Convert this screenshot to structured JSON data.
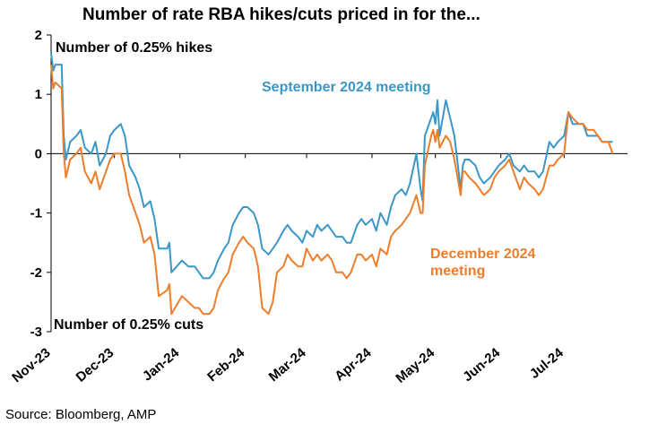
{
  "title": "Number of rate RBA hikes/cuts priced in for the...",
  "source": "Source: Bloomberg, AMP",
  "annotations": {
    "hikes": "Number of 0.25% hikes",
    "cuts": "Number of 0.25% cuts"
  },
  "colors": {
    "september": "#3a97c7",
    "december": "#ee7d2b",
    "axis": "#000000"
  },
  "chart_data": {
    "type": "line",
    "title": "Number of rate RBA hikes/cuts priced in for the...",
    "xlabel": "",
    "ylabel": "",
    "ylim": [
      -3,
      2
    ],
    "yticks": [
      2,
      1,
      0,
      -1,
      -2,
      -3
    ],
    "xlim": [
      "2023-11-01",
      "2024-07-31"
    ],
    "x_tick_labels": [
      "Nov-23",
      "Dec-23",
      "Jan-24",
      "Feb-24",
      "Mar-24",
      "Apr-24",
      "May-24",
      "Jun-24",
      "Jul-24"
    ],
    "x_tick_dates": [
      "2023-11-01",
      "2023-12-01",
      "2024-01-01",
      "2024-02-01",
      "2024-03-01",
      "2024-04-01",
      "2024-05-01",
      "2024-06-01",
      "2024-07-01"
    ],
    "grid": false,
    "series": [
      {
        "name": "September 2024 meeting",
        "color": "#3a97c7",
        "label_position": "top-right",
        "points": [
          [
            "2023-11-01",
            1.7
          ],
          [
            "2023-11-02",
            1.4
          ],
          [
            "2023-11-03",
            1.5
          ],
          [
            "2023-11-06",
            1.5
          ],
          [
            "2023-11-07",
            0.3
          ],
          [
            "2023-11-08",
            -0.1
          ],
          [
            "2023-11-10",
            0.2
          ],
          [
            "2023-11-13",
            0.3
          ],
          [
            "2023-11-15",
            0.4
          ],
          [
            "2023-11-17",
            0.1
          ],
          [
            "2023-11-20",
            0.0
          ],
          [
            "2023-11-22",
            0.2
          ],
          [
            "2023-11-24",
            -0.2
          ],
          [
            "2023-11-27",
            0.0
          ],
          [
            "2023-11-29",
            0.3
          ],
          [
            "2023-12-01",
            0.4
          ],
          [
            "2023-12-04",
            0.5
          ],
          [
            "2023-12-06",
            0.3
          ],
          [
            "2023-12-08",
            -0.2
          ],
          [
            "2023-12-11",
            -0.4
          ],
          [
            "2023-12-13",
            -0.6
          ],
          [
            "2023-12-15",
            -0.9
          ],
          [
            "2023-12-18",
            -0.8
          ],
          [
            "2023-12-20",
            -1.1
          ],
          [
            "2023-12-22",
            -1.6
          ],
          [
            "2023-12-26",
            -1.6
          ],
          [
            "2023-12-27",
            -1.5
          ],
          [
            "2023-12-28",
            -2.0
          ],
          [
            "2024-01-02",
            -1.8
          ],
          [
            "2024-01-05",
            -1.9
          ],
          [
            "2024-01-08",
            -1.9
          ],
          [
            "2024-01-10",
            -2.0
          ],
          [
            "2024-01-12",
            -2.1
          ],
          [
            "2024-01-15",
            -2.1
          ],
          [
            "2024-01-17",
            -2.0
          ],
          [
            "2024-01-19",
            -1.8
          ],
          [
            "2024-01-22",
            -1.6
          ],
          [
            "2024-01-24",
            -1.5
          ],
          [
            "2024-01-26",
            -1.2
          ],
          [
            "2024-01-29",
            -1.0
          ],
          [
            "2024-01-31",
            -0.9
          ],
          [
            "2024-02-02",
            -0.9
          ],
          [
            "2024-02-05",
            -1.0
          ],
          [
            "2024-02-07",
            -1.2
          ],
          [
            "2024-02-09",
            -1.6
          ],
          [
            "2024-02-12",
            -1.7
          ],
          [
            "2024-02-14",
            -1.6
          ],
          [
            "2024-02-16",
            -1.5
          ],
          [
            "2024-02-19",
            -1.3
          ],
          [
            "2024-02-21",
            -1.2
          ],
          [
            "2024-02-23",
            -1.3
          ],
          [
            "2024-02-26",
            -1.4
          ],
          [
            "2024-02-28",
            -1.5
          ],
          [
            "2024-03-01",
            -1.3
          ],
          [
            "2024-03-04",
            -1.4
          ],
          [
            "2024-03-06",
            -1.2
          ],
          [
            "2024-03-08",
            -1.3
          ],
          [
            "2024-03-11",
            -1.2
          ],
          [
            "2024-03-13",
            -1.3
          ],
          [
            "2024-03-15",
            -1.4
          ],
          [
            "2024-03-18",
            -1.4
          ],
          [
            "2024-03-20",
            -1.5
          ],
          [
            "2024-03-22",
            -1.5
          ],
          [
            "2024-03-25",
            -1.2
          ],
          [
            "2024-03-27",
            -1.1
          ],
          [
            "2024-03-29",
            -1.2
          ],
          [
            "2024-04-01",
            -1.1
          ],
          [
            "2024-04-03",
            -1.3
          ],
          [
            "2024-04-05",
            -1.0
          ],
          [
            "2024-04-08",
            -1.2
          ],
          [
            "2024-04-10",
            -0.9
          ],
          [
            "2024-04-12",
            -0.7
          ],
          [
            "2024-04-15",
            -0.6
          ],
          [
            "2024-04-17",
            -0.7
          ],
          [
            "2024-04-19",
            -0.5
          ],
          [
            "2024-04-22",
            0.0
          ],
          [
            "2024-04-24",
            -0.6
          ],
          [
            "2024-04-25",
            -0.8
          ],
          [
            "2024-04-26",
            0.3
          ],
          [
            "2024-04-29",
            0.6
          ],
          [
            "2024-04-30",
            0.7
          ],
          [
            "2024-05-01",
            0.5
          ],
          [
            "2024-05-02",
            0.9
          ],
          [
            "2024-05-03",
            0.3
          ],
          [
            "2024-05-06",
            0.9
          ],
          [
            "2024-05-08",
            0.6
          ],
          [
            "2024-05-10",
            0.3
          ],
          [
            "2024-05-13",
            -0.6
          ],
          [
            "2024-05-14",
            -0.2
          ],
          [
            "2024-05-15",
            -0.1
          ],
          [
            "2024-05-17",
            -0.1
          ],
          [
            "2024-05-20",
            -0.2
          ],
          [
            "2024-05-22",
            -0.4
          ],
          [
            "2024-05-24",
            -0.5
          ],
          [
            "2024-05-27",
            -0.4
          ],
          [
            "2024-05-29",
            -0.3
          ],
          [
            "2024-05-31",
            -0.2
          ],
          [
            "2024-06-03",
            -0.1
          ],
          [
            "2024-06-05",
            0.0
          ],
          [
            "2024-06-07",
            -0.2
          ],
          [
            "2024-06-10",
            -0.3
          ],
          [
            "2024-06-12",
            -0.2
          ],
          [
            "2024-06-14",
            -0.3
          ],
          [
            "2024-06-17",
            -0.3
          ],
          [
            "2024-06-19",
            -0.4
          ],
          [
            "2024-06-21",
            -0.3
          ],
          [
            "2024-06-24",
            0.2
          ],
          [
            "2024-06-26",
            0.1
          ],
          [
            "2024-06-28",
            0.2
          ],
          [
            "2024-07-01",
            0.3
          ],
          [
            "2024-07-03",
            0.7
          ],
          [
            "2024-07-05",
            0.5
          ],
          [
            "2024-07-08",
            0.5
          ],
          [
            "2024-07-10",
            0.5
          ],
          [
            "2024-07-12",
            0.3
          ],
          [
            "2024-07-15",
            0.3
          ],
          [
            "2024-07-17",
            0.3
          ],
          [
            "2024-07-19",
            0.2
          ],
          [
            "2024-07-22",
            0.2
          ],
          [
            "2024-07-24",
            0.2
          ]
        ]
      },
      {
        "name": "December 2024 meeting",
        "color": "#ee7d2b",
        "label_position": "bottom-right",
        "points": [
          [
            "2023-11-01",
            1.5
          ],
          [
            "2023-11-02",
            1.1
          ],
          [
            "2023-11-03",
            1.2
          ],
          [
            "2023-11-06",
            1.1
          ],
          [
            "2023-11-07",
            0.0
          ],
          [
            "2023-11-08",
            -0.4
          ],
          [
            "2023-11-10",
            -0.1
          ],
          [
            "2023-11-13",
            0.0
          ],
          [
            "2023-11-15",
            0.1
          ],
          [
            "2023-11-17",
            -0.3
          ],
          [
            "2023-11-20",
            -0.5
          ],
          [
            "2023-11-22",
            -0.3
          ],
          [
            "2023-11-24",
            -0.6
          ],
          [
            "2023-11-27",
            -0.3
          ],
          [
            "2023-11-29",
            -0.1
          ],
          [
            "2023-12-01",
            0.0
          ],
          [
            "2023-12-04",
            0.0
          ],
          [
            "2023-12-06",
            -0.3
          ],
          [
            "2023-12-08",
            -0.7
          ],
          [
            "2023-12-11",
            -1.0
          ],
          [
            "2023-12-13",
            -1.2
          ],
          [
            "2023-12-15",
            -1.5
          ],
          [
            "2023-12-18",
            -1.4
          ],
          [
            "2023-12-20",
            -1.7
          ],
          [
            "2023-12-22",
            -2.4
          ],
          [
            "2023-12-26",
            -2.3
          ],
          [
            "2023-12-27",
            -2.2
          ],
          [
            "2023-12-28",
            -2.7
          ],
          [
            "2024-01-02",
            -2.4
          ],
          [
            "2024-01-05",
            -2.5
          ],
          [
            "2024-01-08",
            -2.6
          ],
          [
            "2024-01-10",
            -2.6
          ],
          [
            "2024-01-12",
            -2.7
          ],
          [
            "2024-01-15",
            -2.7
          ],
          [
            "2024-01-17",
            -2.6
          ],
          [
            "2024-01-19",
            -2.3
          ],
          [
            "2024-01-22",
            -2.1
          ],
          [
            "2024-01-24",
            -2.0
          ],
          [
            "2024-01-26",
            -1.7
          ],
          [
            "2024-01-29",
            -1.5
          ],
          [
            "2024-01-31",
            -1.4
          ],
          [
            "2024-02-02",
            -1.5
          ],
          [
            "2024-02-05",
            -1.6
          ],
          [
            "2024-02-07",
            -1.9
          ],
          [
            "2024-02-09",
            -2.6
          ],
          [
            "2024-02-12",
            -2.7
          ],
          [
            "2024-02-14",
            -2.5
          ],
          [
            "2024-02-16",
            -2.0
          ],
          [
            "2024-02-19",
            -1.9
          ],
          [
            "2024-02-21",
            -1.7
          ],
          [
            "2024-02-23",
            -1.8
          ],
          [
            "2024-02-26",
            -1.9
          ],
          [
            "2024-02-28",
            -1.9
          ],
          [
            "2024-03-01",
            -1.6
          ],
          [
            "2024-03-04",
            -1.8
          ],
          [
            "2024-03-06",
            -1.7
          ],
          [
            "2024-03-08",
            -1.8
          ],
          [
            "2024-03-11",
            -1.7
          ],
          [
            "2024-03-13",
            -1.8
          ],
          [
            "2024-03-15",
            -2.0
          ],
          [
            "2024-03-18",
            -2.0
          ],
          [
            "2024-03-20",
            -2.1
          ],
          [
            "2024-03-22",
            -2.0
          ],
          [
            "2024-03-25",
            -1.7
          ],
          [
            "2024-03-27",
            -1.7
          ],
          [
            "2024-03-29",
            -1.8
          ],
          [
            "2024-04-01",
            -1.7
          ],
          [
            "2024-04-03",
            -1.9
          ],
          [
            "2024-04-05",
            -1.6
          ],
          [
            "2024-04-08",
            -1.7
          ],
          [
            "2024-04-10",
            -1.4
          ],
          [
            "2024-04-12",
            -1.3
          ],
          [
            "2024-04-15",
            -1.2
          ],
          [
            "2024-04-17",
            -1.1
          ],
          [
            "2024-04-19",
            -1.0
          ],
          [
            "2024-04-22",
            -0.7
          ],
          [
            "2024-04-24",
            -1.0
          ],
          [
            "2024-04-25",
            -1.0
          ],
          [
            "2024-04-26",
            -0.2
          ],
          [
            "2024-04-29",
            0.3
          ],
          [
            "2024-04-30",
            0.4
          ],
          [
            "2024-05-01",
            0.2
          ],
          [
            "2024-05-02",
            0.4
          ],
          [
            "2024-05-03",
            0.1
          ],
          [
            "2024-05-06",
            0.3
          ],
          [
            "2024-05-08",
            0.2
          ],
          [
            "2024-05-10",
            -0.1
          ],
          [
            "2024-05-13",
            -0.7
          ],
          [
            "2024-05-14",
            -0.3
          ],
          [
            "2024-05-15",
            -0.3
          ],
          [
            "2024-05-17",
            -0.4
          ],
          [
            "2024-05-20",
            -0.5
          ],
          [
            "2024-05-22",
            -0.6
          ],
          [
            "2024-05-24",
            -0.7
          ],
          [
            "2024-05-27",
            -0.6
          ],
          [
            "2024-05-29",
            -0.4
          ],
          [
            "2024-05-31",
            -0.3
          ],
          [
            "2024-06-03",
            -0.2
          ],
          [
            "2024-06-05",
            -0.1
          ],
          [
            "2024-06-07",
            -0.3
          ],
          [
            "2024-06-10",
            -0.6
          ],
          [
            "2024-06-12",
            -0.4
          ],
          [
            "2024-06-14",
            -0.5
          ],
          [
            "2024-06-17",
            -0.6
          ],
          [
            "2024-06-19",
            -0.7
          ],
          [
            "2024-06-21",
            -0.6
          ],
          [
            "2024-06-24",
            -0.2
          ],
          [
            "2024-06-26",
            -0.2
          ],
          [
            "2024-06-28",
            -0.1
          ],
          [
            "2024-07-01",
            0.0
          ],
          [
            "2024-07-03",
            0.7
          ],
          [
            "2024-07-05",
            0.6
          ],
          [
            "2024-07-08",
            0.5
          ],
          [
            "2024-07-10",
            0.5
          ],
          [
            "2024-07-12",
            0.4
          ],
          [
            "2024-07-15",
            0.4
          ],
          [
            "2024-07-17",
            0.3
          ],
          [
            "2024-07-19",
            0.2
          ],
          [
            "2024-07-22",
            0.2
          ],
          [
            "2024-07-24",
            0.0
          ]
        ]
      }
    ]
  }
}
